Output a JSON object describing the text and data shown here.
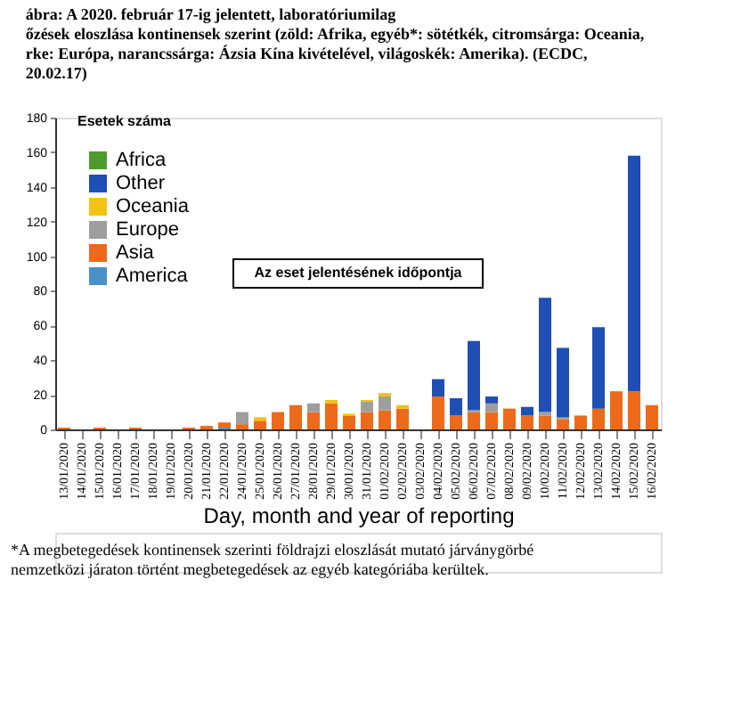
{
  "chart_data": {
    "type": "bar",
    "stacked": true,
    "title": [
      "ábra: A 2020. február 17-ig jelentett, laboratóriumilag",
      "őzések eloszlása kontinensek szerint (zöld: Afrika, egyéb*: sötétkék, citromsárga: Oceania,",
      "rke: Európa, narancssárga: Ázsia Kína kivételével, világoskék: Amerika). (ECDC,",
      "20.02.17)"
    ],
    "xlabel": "Day, month and year of reporting",
    "ylabel": "Esetek száma",
    "categories": [
      "13/01/2020",
      "14/01/2020",
      "15/01/2020",
      "16/01/2020",
      "17/01/2020",
      "18/01/2020",
      "19/01/2020",
      "20/01/2020",
      "21/01/2020",
      "22/01/2020",
      "24/01/2020",
      "25/01/2020",
      "26/01/2020",
      "27/01/2020",
      "28/01/2020",
      "29/01/2020",
      "30/01/2020",
      "31/01/2020",
      "01/02/2020",
      "02/02/2020",
      "03/02/2020",
      "04/02/2020",
      "05/02/2020",
      "06/02/2020",
      "07/02/2020",
      "08/02/2020",
      "09/02/2020",
      "10/02/2020",
      "11/02/2020",
      "12/02/2020",
      "13/02/2020",
      "14/02/2020",
      "15/02/2020",
      "16/02/2020"
    ],
    "series": [
      {
        "name": "America",
        "color": "#4a90c8",
        "values": [
          0,
          0,
          0,
          0,
          0,
          0,
          0,
          0,
          0,
          1,
          0,
          0,
          0,
          0,
          0,
          0,
          0,
          0,
          0,
          0,
          0,
          0,
          0,
          0,
          0,
          0,
          0,
          0,
          0,
          0,
          0,
          0,
          0,
          0
        ]
      },
      {
        "name": "Asia",
        "color": "#ed6a1a",
        "values": [
          1,
          0,
          1,
          0,
          1,
          0,
          0,
          1,
          2,
          3,
          3,
          5,
          10,
          14,
          10,
          15,
          8,
          10,
          11,
          12,
          0,
          19,
          8,
          10,
          10,
          12,
          8,
          8,
          6,
          8,
          12,
          22,
          22,
          14
        ]
      },
      {
        "name": "Europe",
        "color": "#9e9e9e",
        "values": [
          0,
          0,
          0,
          0,
          0,
          0,
          0,
          0,
          0,
          0,
          7,
          0,
          0,
          0,
          5,
          0,
          0,
          6,
          8,
          0,
          0,
          0,
          0,
          1,
          5,
          0,
          0,
          2,
          1,
          0,
          0,
          0,
          0,
          0
        ]
      },
      {
        "name": "Oceania",
        "color": "#f2c314",
        "values": [
          0,
          0,
          0,
          0,
          0,
          0,
          0,
          0,
          0,
          0,
          0,
          2,
          0,
          0,
          0,
          2,
          1,
          1,
          2,
          2,
          0,
          0,
          0,
          0,
          0,
          0,
          0,
          0,
          0,
          0,
          0,
          0,
          0,
          0
        ]
      },
      {
        "name": "Other",
        "color": "#1f4fb4",
        "values": [
          0,
          0,
          0,
          0,
          0,
          0,
          0,
          0,
          0,
          0,
          0,
          0,
          0,
          0,
          0,
          0,
          0,
          0,
          0,
          0,
          0,
          10,
          10,
          40,
          4,
          0,
          5,
          66,
          40,
          0,
          47,
          0,
          136,
          0
        ]
      },
      {
        "name": "Africa",
        "color": "#4e9a2e",
        "values": [
          0,
          0,
          0,
          0,
          0,
          0,
          0,
          0,
          0,
          0,
          0,
          0,
          0,
          0,
          0,
          0,
          0,
          0,
          0,
          0,
          0,
          0,
          0,
          0,
          0,
          0,
          0,
          0,
          0,
          0,
          0,
          0,
          0,
          0
        ]
      }
    ],
    "ylim": [
      0,
      180
    ],
    "yticks": [
      0,
      20,
      40,
      60,
      80,
      100,
      120,
      140,
      160,
      180
    ],
    "grid": false,
    "legend": "top left",
    "annotations": [
      "Az eset jelentésének időpontja",
      "*A megbetegedések kontinensek szerinti földrajzi eloszlását mutató járványgörbé",
      "nemzetközi járaton történt megbetegedések az egyéb kategóriába kerültek."
    ]
  }
}
